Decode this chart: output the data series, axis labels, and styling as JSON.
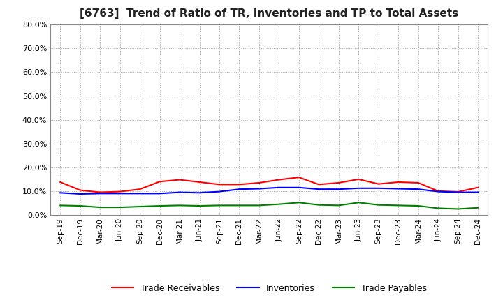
{
  "title": "[6763]  Trend of Ratio of TR, Inventories and TP to Total Assets",
  "title_fontsize": 11,
  "legend_labels": [
    "Trade Receivables",
    "Inventories",
    "Trade Payables"
  ],
  "line_colors": [
    "#ff0000",
    "#0000ff",
    "#008000"
  ],
  "x_labels": [
    "Sep-19",
    "Dec-19",
    "Mar-20",
    "Jun-20",
    "Sep-20",
    "Dec-20",
    "Mar-21",
    "Jun-21",
    "Sep-21",
    "Dec-21",
    "Mar-22",
    "Jun-22",
    "Sep-22",
    "Dec-22",
    "Mar-23",
    "Jun-23",
    "Sep-23",
    "Dec-23",
    "Mar-24",
    "Jun-24",
    "Sep-24",
    "Dec-24"
  ],
  "ylim": [
    0.0,
    0.8
  ],
  "yticks": [
    0.0,
    0.1,
    0.2,
    0.3,
    0.4,
    0.5,
    0.6,
    0.7,
    0.8
  ],
  "trade_receivables": [
    0.138,
    0.104,
    0.095,
    0.098,
    0.108,
    0.14,
    0.148,
    0.138,
    0.128,
    0.128,
    0.135,
    0.148,
    0.158,
    0.128,
    0.135,
    0.15,
    0.13,
    0.138,
    0.135,
    0.1,
    0.097,
    0.115
  ],
  "inventories": [
    0.093,
    0.088,
    0.09,
    0.09,
    0.09,
    0.09,
    0.095,
    0.093,
    0.098,
    0.108,
    0.11,
    0.115,
    0.115,
    0.108,
    0.108,
    0.112,
    0.112,
    0.11,
    0.108,
    0.098,
    0.095,
    0.095
  ],
  "trade_payables": [
    0.04,
    0.038,
    0.032,
    0.032,
    0.035,
    0.038,
    0.04,
    0.038,
    0.04,
    0.04,
    0.04,
    0.045,
    0.052,
    0.042,
    0.04,
    0.052,
    0.042,
    0.04,
    0.038,
    0.028,
    0.025,
    0.03
  ],
  "background_color": "#ffffff",
  "grid_color": "#aaaaaa"
}
